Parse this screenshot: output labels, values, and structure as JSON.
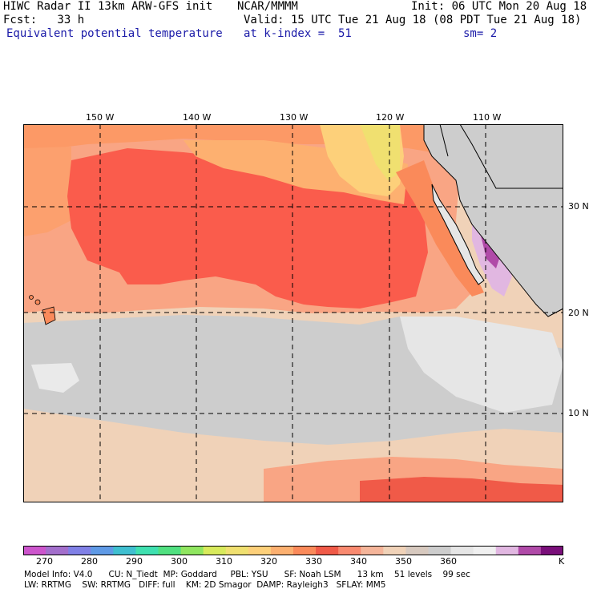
{
  "header": {
    "model_line": "HIWC Radar II 13km ARW-GFS init",
    "org": "NCAR/MMMM",
    "init": "Init: 06 UTC Mon 20 Aug 18",
    "fcst": "Fcst:   33 h",
    "valid": "Valid: 15 UTC Tue 21 Aug 18 (08 PDT Tue 21 Aug 18)",
    "field": "Equivalent potential temperature",
    "kindex": "at k-index =  51",
    "smooth": "sm= 2"
  },
  "map": {
    "lon_labels": [
      "150 W",
      "140 W",
      "130 W",
      "120 W",
      "110 W"
    ],
    "lat_labels": [
      "30 N",
      "20 N",
      "10 N"
    ],
    "ocean_base_color": "#cdcdcd",
    "land_color": "#cdcdcd"
  },
  "colorbar": {
    "colors": [
      "#cc55cc",
      "#a36fcc",
      "#8080e6",
      "#5f9ae6",
      "#3fbfd0",
      "#3fe0b0",
      "#50e080",
      "#90e660",
      "#d8ea5c",
      "#f0e070",
      "#fdd07a",
      "#fcb070",
      "#fa8a5a",
      "#f05a48",
      "#f98a70",
      "#f5b59a",
      "#f0d2b8",
      "#d7c9bf",
      "#cdcdcd",
      "#e6e6e6",
      "#f0f0f0",
      "#e1b7e1",
      "#b04aa8",
      "#7a0f7a"
    ],
    "tick_labels": [
      "270",
      "280",
      "290",
      "300",
      "310",
      "320",
      "330",
      "340",
      "350",
      "360"
    ],
    "unit": "K"
  },
  "footer": {
    "line1": "Model Info: V4.0      CU: N_Tiedt  MP: Goddard     PBL: YSU      SF: Noah LSM      13 km    51 levels    99 sec",
    "line2": "LW: RRTMG    SW: RRTMG   DIFF: full    KM: 2D Smagor  DAMP: Rayleigh3   SFLAY: MM5"
  }
}
